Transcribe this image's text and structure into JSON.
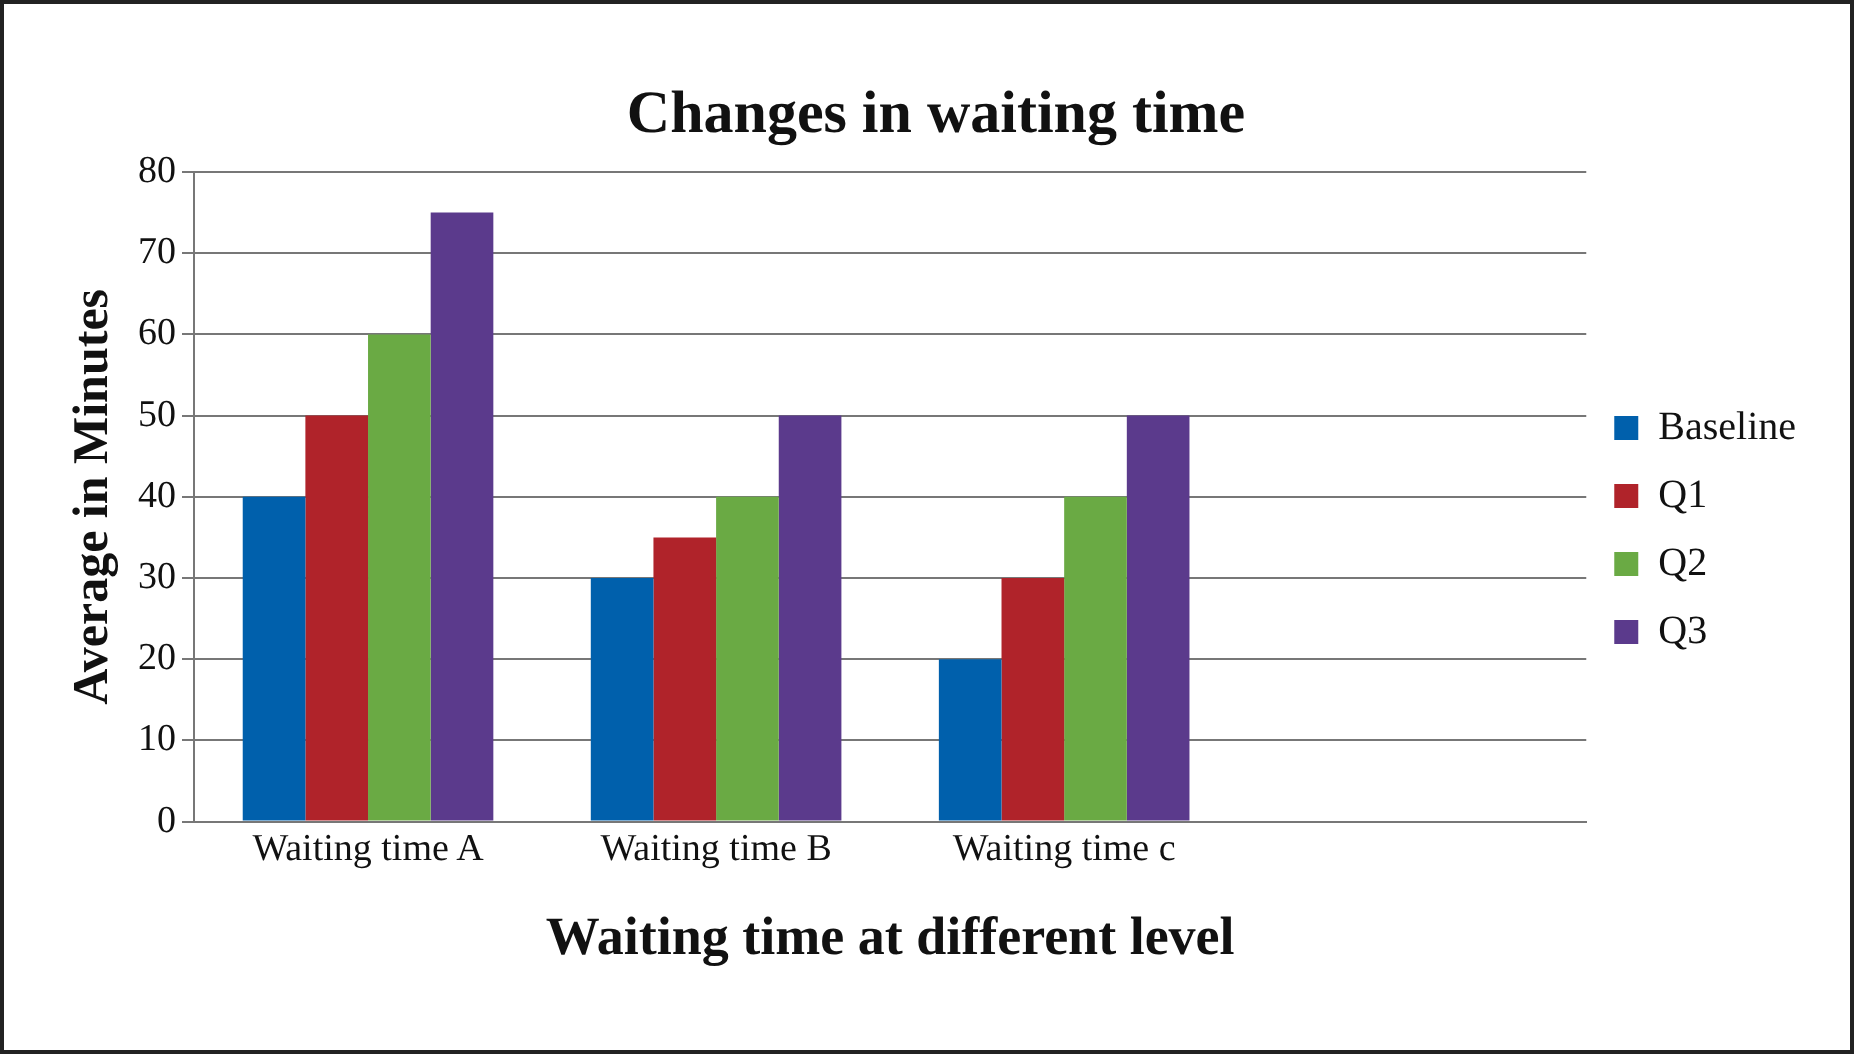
{
  "chart_data": {
    "type": "bar",
    "title": "Changes in waiting time",
    "xlabel": "Waiting time at different level",
    "ylabel": "Average in Minutes",
    "categories": [
      "Waiting time A",
      "Waiting time B",
      "Waiting time c",
      null
    ],
    "series": [
      {
        "name": "Baseline",
        "color": "#0060ac",
        "values": [
          40,
          30,
          20,
          null
        ]
      },
      {
        "name": "Q1",
        "color": "#b0232a",
        "values": [
          50,
          35,
          30,
          null
        ]
      },
      {
        "name": "Q2",
        "color": "#6aaa44",
        "values": [
          60,
          40,
          40,
          null
        ]
      },
      {
        "name": "Q3",
        "color": "#5b3a8c",
        "values": [
          75,
          50,
          50,
          null
        ]
      }
    ],
    "ylim": [
      0,
      80
    ],
    "yticks": [
      0,
      10,
      20,
      30,
      40,
      50,
      60,
      70,
      80
    ],
    "grid": "y",
    "legend": "right"
  }
}
